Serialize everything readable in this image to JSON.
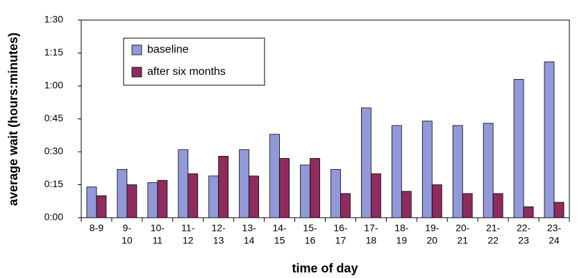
{
  "chart_data": {
    "type": "bar",
    "x_label": "time of day",
    "y_label": "average wait (hours:minutes)",
    "categories": [
      [
        "8-9"
      ],
      [
        "9-",
        "10"
      ],
      [
        "10-",
        "11"
      ],
      [
        "11-",
        "12"
      ],
      [
        "12-",
        "13"
      ],
      [
        "13-",
        "14"
      ],
      [
        "14-",
        "15"
      ],
      [
        "15-",
        "16"
      ],
      [
        "16-",
        "17"
      ],
      [
        "17-",
        "18"
      ],
      [
        "18-",
        "19"
      ],
      [
        "19-",
        "20"
      ],
      [
        "20-",
        "21"
      ],
      [
        "21-",
        "22"
      ],
      [
        "22-",
        "23"
      ],
      [
        "23-",
        "24"
      ]
    ],
    "series": [
      {
        "name": "baseline",
        "color": "#9199d9",
        "values": [
          14,
          22,
          16,
          31,
          19,
          31,
          38,
          24,
          22,
          50,
          42,
          44,
          42,
          43,
          63,
          71
        ]
      },
      {
        "name": "after six months",
        "color": "#8e2c5e",
        "values": [
          10,
          15,
          17,
          20,
          28,
          19,
          27,
          27,
          11,
          20,
          12,
          15,
          11,
          11,
          5,
          7
        ]
      }
    ],
    "ylim": [
      0,
      90
    ],
    "yticks": [
      {
        "value": 0,
        "label": "0:00"
      },
      {
        "value": 15,
        "label": "0:15"
      },
      {
        "value": 30,
        "label": "0:30"
      },
      {
        "value": 45,
        "label": "0:45"
      },
      {
        "value": 60,
        "label": "1:00"
      },
      {
        "value": 75,
        "label": "1:15"
      },
      {
        "value": 90,
        "label": "1:30"
      }
    ],
    "legend": "upper left"
  }
}
